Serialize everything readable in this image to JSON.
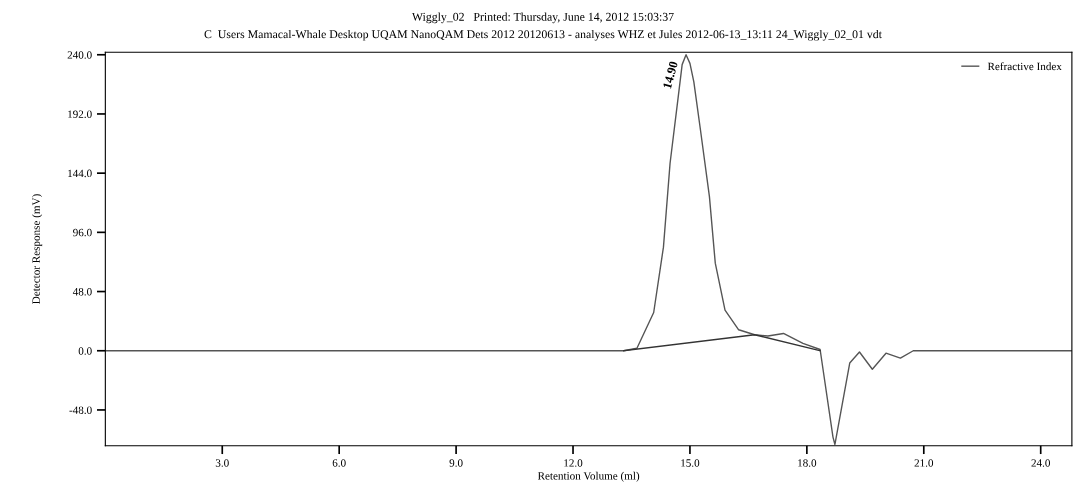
{
  "chart_data": {
    "type": "line",
    "title": "Wiggly_02   Printed: Thursday, June 14, 2012 15:03:37",
    "subtitle": "C  Users Mamacal-Whale Desktop UQAM NanoQAM Dets 2012 20120613 - analyses WHZ et Jules 2012-06-13_13:11 24_Wiggly_02_01 vdt",
    "xlabel": "Retention Volume (ml)",
    "ylabel": "Detector Response (mV)",
    "series": [
      {
        "name": "Refractive Index",
        "color": "#555555",
        "x": [
          0,
          13.3,
          13.64,
          14.07,
          14.32,
          14.49,
          14.7,
          14.8,
          14.9,
          15.0,
          15.1,
          15.27,
          15.5,
          15.65,
          15.9,
          16.25,
          16.66,
          17.0,
          17.4,
          17.9,
          18.34,
          18.67,
          18.72,
          19.1,
          19.35,
          19.68,
          20.03,
          20.4,
          20.73,
          24.8
        ],
        "values": [
          0,
          0,
          2,
          31,
          84,
          152,
          206,
          232,
          240,
          233,
          218,
          179,
          125,
          71,
          33,
          17,
          13,
          12,
          14,
          6,
          1,
          -70,
          -76,
          -10,
          -1,
          -15,
          -2,
          -6,
          0,
          0
        ]
      },
      {
        "color": "#333333",
        "x": [
          13.3,
          16.66,
          18.34
        ],
        "values": [
          0,
          13,
          0
        ]
      }
    ],
    "annotations": [
      {
        "text": "14.90",
        "x": 14.9,
        "y": 240
      }
    ],
    "xlim": [
      0,
      24.8
    ],
    "ylim": [
      -77,
      242
    ],
    "xticks": [
      {
        "value": 3,
        "label": "3.0"
      },
      {
        "value": 6,
        "label": "6.0"
      },
      {
        "value": 9,
        "label": "9.0"
      },
      {
        "value": 12,
        "label": "12.0"
      },
      {
        "value": 15,
        "label": "15.0"
      },
      {
        "value": 18,
        "label": "18.0"
      },
      {
        "value": 21,
        "label": "21.0"
      },
      {
        "value": 24,
        "label": "24.0"
      }
    ],
    "yticks": [
      {
        "value": -48,
        "label": "-48.0"
      },
      {
        "value": 0,
        "label": "0.0"
      },
      {
        "value": 48,
        "label": "48.0"
      },
      {
        "value": 96,
        "label": "96.0"
      },
      {
        "value": 144,
        "label": "144.0"
      },
      {
        "value": 192,
        "label": "192.0"
      },
      {
        "value": 240,
        "label": "240.0"
      }
    ],
    "grid": false,
    "legend": "top right",
    "marker": "none",
    "line_style": "solid"
  }
}
